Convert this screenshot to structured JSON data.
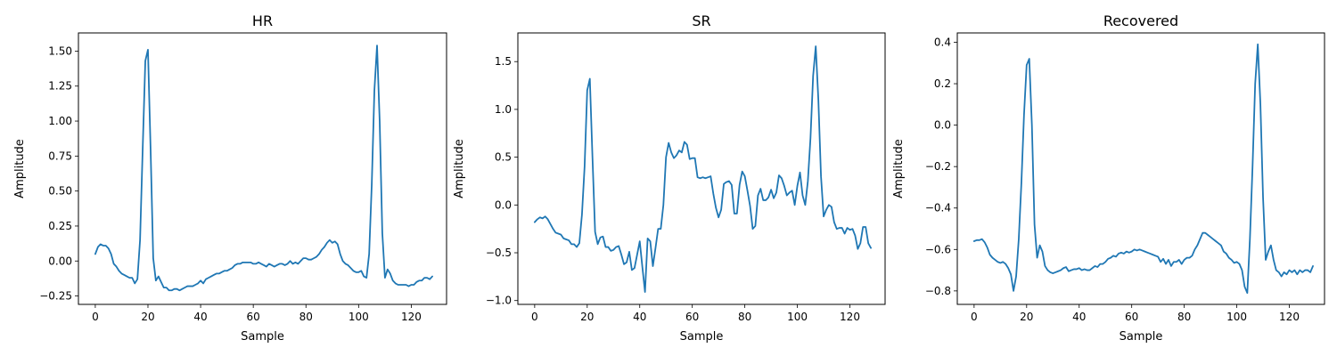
{
  "colors": {
    "series": "#1f77b4"
  },
  "chart_data": [
    {
      "type": "line",
      "title": "HR",
      "xlabel": "Sample",
      "ylabel": "Amplitude",
      "xlim": [
        -6.4,
        133.4
      ],
      "ylim": [
        -0.31,
        1.63
      ],
      "xticks": [
        0,
        20,
        40,
        60,
        80,
        100,
        120
      ],
      "yticks": [
        -0.25,
        0.0,
        0.25,
        0.5,
        0.75,
        1.0,
        1.25,
        1.5
      ],
      "ytick_labels": [
        "−0.25",
        "0.00",
        "0.25",
        "0.50",
        "0.75",
        "1.00",
        "1.25",
        "1.50"
      ],
      "series": [
        {
          "values": [
            0.05,
            0.1,
            0.12,
            0.11,
            0.11,
            0.09,
            0.05,
            -0.02,
            -0.04,
            -0.07,
            -0.09,
            -0.1,
            -0.11,
            -0.12,
            -0.12,
            -0.16,
            -0.13,
            0.15,
            0.8,
            1.43,
            1.51,
            0.8,
            0.02,
            -0.14,
            -0.11,
            -0.15,
            -0.19,
            -0.19,
            -0.21,
            -0.21,
            -0.2,
            -0.2,
            -0.21,
            -0.2,
            -0.19,
            -0.18,
            -0.18,
            -0.18,
            -0.17,
            -0.16,
            -0.14,
            -0.16,
            -0.13,
            -0.12,
            -0.11,
            -0.1,
            -0.09,
            -0.09,
            -0.08,
            -0.07,
            -0.07,
            -0.06,
            -0.05,
            -0.03,
            -0.02,
            -0.02,
            -0.01,
            -0.01,
            -0.01,
            -0.01,
            -0.02,
            -0.02,
            -0.01,
            -0.02,
            -0.03,
            -0.04,
            -0.02,
            -0.03,
            -0.04,
            -0.03,
            -0.02,
            -0.02,
            -0.03,
            -0.02,
            0.0,
            -0.02,
            -0.01,
            -0.02,
            0.0,
            0.02,
            0.02,
            0.01,
            0.01,
            0.02,
            0.03,
            0.05,
            0.08,
            0.1,
            0.13,
            0.15,
            0.13,
            0.14,
            0.12,
            0.05,
            0.0,
            -0.02,
            -0.03,
            -0.05,
            -0.07,
            -0.08,
            -0.08,
            -0.07,
            -0.11,
            -0.12,
            0.05,
            0.55,
            1.22,
            1.54,
            1.0,
            0.2,
            -0.12,
            -0.06,
            -0.09,
            -0.14,
            -0.16,
            -0.17,
            -0.17,
            -0.17,
            -0.17,
            -0.18,
            -0.17,
            -0.17,
            -0.15,
            -0.14,
            -0.14,
            -0.12,
            -0.12,
            -0.13,
            -0.11
          ]
        }
      ]
    },
    {
      "type": "line",
      "title": "SR",
      "xlabel": "Sample",
      "ylabel": "Amplitude",
      "xlim": [
        -6.4,
        133.4
      ],
      "ylim": [
        -1.04,
        1.8
      ],
      "xticks": [
        0,
        20,
        40,
        60,
        80,
        100,
        120
      ],
      "yticks": [
        -1.0,
        -0.5,
        0.0,
        0.5,
        1.0,
        1.5
      ],
      "ytick_labels": [
        "−1.0",
        "−0.5",
        "0.0",
        "0.5",
        "1.0",
        "1.5"
      ],
      "series": [
        {
          "values": [
            -0.18,
            -0.15,
            -0.13,
            -0.14,
            -0.12,
            -0.15,
            -0.2,
            -0.25,
            -0.29,
            -0.3,
            -0.31,
            -0.35,
            -0.36,
            -0.37,
            -0.41,
            -0.41,
            -0.44,
            -0.4,
            -0.1,
            0.4,
            1.2,
            1.32,
            0.5,
            -0.28,
            -0.41,
            -0.34,
            -0.33,
            -0.44,
            -0.44,
            -0.48,
            -0.47,
            -0.44,
            -0.43,
            -0.52,
            -0.62,
            -0.6,
            -0.49,
            -0.68,
            -0.66,
            -0.52,
            -0.38,
            -0.65,
            -0.91,
            -0.35,
            -0.38,
            -0.64,
            -0.45,
            -0.25,
            -0.25,
            0.0,
            0.5,
            0.65,
            0.55,
            0.49,
            0.52,
            0.57,
            0.55,
            0.66,
            0.63,
            0.48,
            0.49,
            0.49,
            0.29,
            0.28,
            0.29,
            0.28,
            0.29,
            0.3,
            0.12,
            -0.03,
            -0.13,
            -0.05,
            0.22,
            0.24,
            0.25,
            0.21,
            -0.09,
            -0.09,
            0.21,
            0.35,
            0.3,
            0.15,
            -0.01,
            -0.25,
            -0.22,
            0.1,
            0.17,
            0.05,
            0.05,
            0.08,
            0.16,
            0.07,
            0.13,
            0.31,
            0.28,
            0.2,
            0.1,
            0.13,
            0.15,
            0.0,
            0.2,
            0.34,
            0.1,
            0.0,
            0.25,
            0.7,
            1.35,
            1.66,
            1.1,
            0.3,
            -0.12,
            -0.05,
            0.0,
            -0.02,
            -0.18,
            -0.25,
            -0.24,
            -0.24,
            -0.3,
            -0.24,
            -0.26,
            -0.25,
            -0.32,
            -0.46,
            -0.4,
            -0.23,
            -0.23,
            -0.4,
            -0.45
          ]
        }
      ]
    },
    {
      "type": "line",
      "title": "Recovered",
      "xlabel": "Sample",
      "ylabel": "Amplitude",
      "xlim": [
        -6.4,
        133.4
      ],
      "ylim": [
        -0.865,
        0.445
      ],
      "xticks": [
        0,
        20,
        40,
        60,
        80,
        100,
        120
      ],
      "yticks": [
        -0.8,
        -0.6,
        -0.4,
        -0.2,
        0.0,
        0.2,
        0.4
      ],
      "ytick_labels": [
        "−0.8",
        "−0.6",
        "−0.4",
        "−0.2",
        "0.0",
        "0.2",
        "0.4"
      ],
      "series": [
        {
          "values": [
            -0.56,
            -0.555,
            -0.555,
            -0.55,
            -0.565,
            -0.59,
            -0.625,
            -0.64,
            -0.65,
            -0.66,
            -0.665,
            -0.66,
            -0.67,
            -0.69,
            -0.72,
            -0.8,
            -0.73,
            -0.55,
            -0.28,
            0.05,
            0.29,
            0.32,
            0.0,
            -0.48,
            -0.64,
            -0.58,
            -0.61,
            -0.68,
            -0.7,
            -0.71,
            -0.715,
            -0.71,
            -0.705,
            -0.7,
            -0.69,
            -0.685,
            -0.705,
            -0.7,
            -0.695,
            -0.695,
            -0.69,
            -0.7,
            -0.695,
            -0.7,
            -0.7,
            -0.69,
            -0.68,
            -0.685,
            -0.67,
            -0.67,
            -0.66,
            -0.645,
            -0.64,
            -0.63,
            -0.635,
            -0.62,
            -0.615,
            -0.62,
            -0.61,
            -0.615,
            -0.61,
            -0.6,
            -0.605,
            -0.6,
            -0.605,
            -0.61,
            -0.615,
            -0.62,
            -0.625,
            -0.63,
            -0.635,
            -0.66,
            -0.645,
            -0.67,
            -0.65,
            -0.68,
            -0.66,
            -0.66,
            -0.65,
            -0.67,
            -0.65,
            -0.64,
            -0.64,
            -0.63,
            -0.6,
            -0.58,
            -0.55,
            -0.52,
            -0.52,
            -0.53,
            -0.54,
            -0.55,
            -0.56,
            -0.57,
            -0.58,
            -0.61,
            -0.62,
            -0.64,
            -0.65,
            -0.665,
            -0.66,
            -0.67,
            -0.7,
            -0.78,
            -0.81,
            -0.55,
            -0.2,
            0.2,
            0.39,
            0.1,
            -0.35,
            -0.65,
            -0.61,
            -0.58,
            -0.65,
            -0.7,
            -0.71,
            -0.73,
            -0.71,
            -0.72,
            -0.7,
            -0.71,
            -0.7,
            -0.72,
            -0.7,
            -0.71,
            -0.7,
            -0.7,
            -0.71,
            -0.68
          ]
        }
      ]
    }
  ]
}
